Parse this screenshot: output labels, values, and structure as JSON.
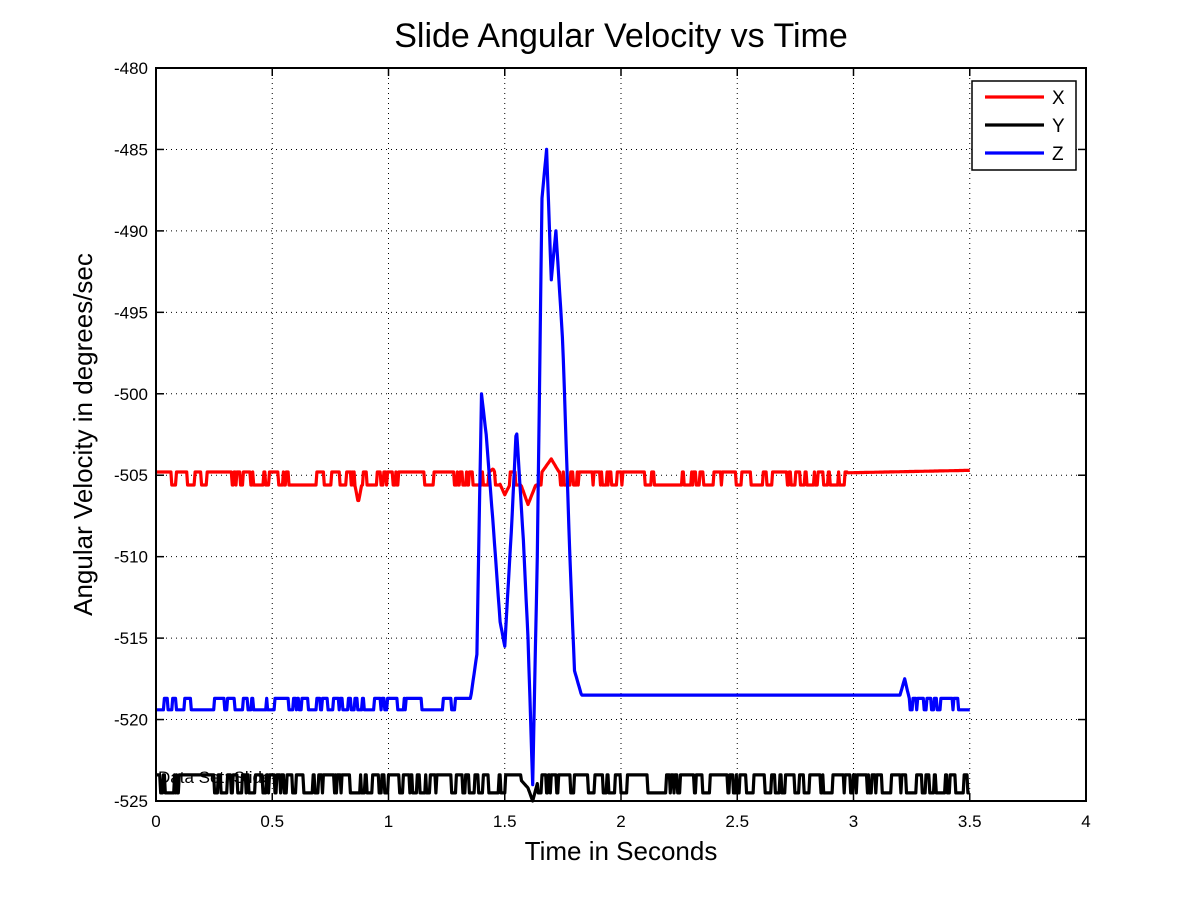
{
  "chart_data": {
    "type": "line",
    "title": "Slide Angular Velocity vs Time",
    "xlabel": "Time in Seconds",
    "ylabel": "Angular Velocity in degrees/sec",
    "xlim": [
      0,
      4
    ],
    "ylim": [
      -525,
      -480
    ],
    "xticks": [
      "0",
      "0.5",
      "1",
      "1.5",
      "2",
      "2.5",
      "3",
      "3.5",
      "4"
    ],
    "yticks": [
      "-480",
      "-485",
      "-490",
      "-495",
      "-500",
      "-505",
      "-510",
      "-515",
      "-520",
      "-525"
    ],
    "grid": true,
    "legend_position": "top-right",
    "annotation": "Data Set: Slide",
    "series": [
      {
        "name": "X",
        "color": "#ff0000",
        "noise_high": -504.8,
        "noise_low": -505.6,
        "x": [
          0,
          0.85,
          0.87,
          0.89,
          1.4,
          1.45,
          1.5,
          1.55,
          1.6,
          1.65,
          1.7,
          1.75,
          3.5
        ],
        "y": [
          -505.2,
          -505.2,
          -506.7,
          -505.2,
          -505.2,
          -504.6,
          -506.2,
          -504.8,
          -506.8,
          -505.0,
          -504.0,
          -505.2,
          -504.7
        ]
      },
      {
        "name": "Y",
        "color": "#000000",
        "noise_high": -523.4,
        "noise_low": -524.5,
        "x": [
          0,
          1.55,
          1.6,
          1.62,
          1.65,
          3.5
        ],
        "y": [
          -523.4,
          -523.4,
          -524.2,
          -525.0,
          -523.4,
          -523.4
        ]
      },
      {
        "name": "Z",
        "color": "#0000ff",
        "noise_high": -518.7,
        "noise_low": -519.4,
        "x": [
          0,
          1.35,
          1.38,
          1.4,
          1.42,
          1.45,
          1.48,
          1.5,
          1.53,
          1.55,
          1.58,
          1.6,
          1.62,
          1.64,
          1.66,
          1.68,
          1.7,
          1.72,
          1.75,
          1.78,
          1.8,
          1.83,
          3.2,
          3.22,
          3.24,
          3.26,
          3.5
        ],
        "y": [
          -519.0,
          -519.0,
          -516.0,
          -500.0,
          -502.5,
          -508.0,
          -514.0,
          -515.5,
          -508.0,
          -502.0,
          -509.0,
          -515.0,
          -524.0,
          -510.0,
          -488.0,
          -485.0,
          -493.0,
          -490.0,
          -497.0,
          -510.0,
          -517.0,
          -518.5,
          -518.5,
          -517.5,
          -518.7,
          -519.0,
          -519.0
        ]
      }
    ]
  }
}
